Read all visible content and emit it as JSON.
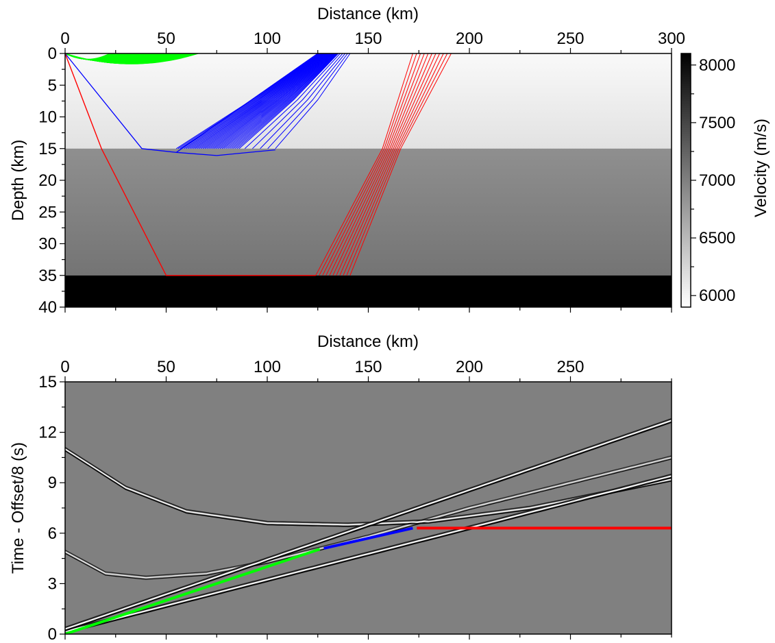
{
  "chart_data": [
    {
      "type": "heatmap",
      "title": "",
      "xlabel": "Distance (km)",
      "ylabel": "Depth (km)",
      "xlim": [
        0,
        300
      ],
      "ylim": [
        40,
        0
      ],
      "x_axis_position": "top",
      "x_ticks": [
        0,
        50,
        100,
        150,
        200,
        250,
        300
      ],
      "y_ticks": [
        0,
        5,
        10,
        15,
        20,
        25,
        30,
        35,
        40
      ],
      "grid": false,
      "layers": [
        {
          "depth_top": 0,
          "depth_bottom": 15,
          "velocity_top": 5950,
          "velocity_bottom": 6150
        },
        {
          "depth_top": 15,
          "depth_bottom": 35,
          "velocity_top": 6870,
          "velocity_bottom": 7100
        },
        {
          "depth_top": 35,
          "depth_bottom": 40,
          "velocity_top": 8100,
          "velocity_bottom": 8100
        }
      ],
      "colorbar": {
        "label": "Velocity (m/s)",
        "range": [
          5900,
          8100
        ],
        "ticks": [
          6000,
          6500,
          7000,
          7500,
          8000
        ],
        "colormap": "white-to-black"
      },
      "ray_families": [
        {
          "name": "direct",
          "color": "#00ff00",
          "rays": [
            [
              [
                0,
                0
              ],
              [
                30,
                1.5
              ],
              [
                65,
                0.5
              ],
              [
                70,
                0
              ]
            ]
          ]
        },
        {
          "name": "head_wave_15km",
          "color": "#0000ff",
          "fan": {
            "interface_x": [
              55,
              104
            ],
            "interface_depth": 15,
            "surface_x": [
              125,
              141
            ],
            "dense_until_x": 87
          },
          "rays": [
            [
              [
                0,
                0
              ],
              [
                38,
                15
              ],
              [
                55,
                15.6
              ],
              [
                125,
                0
              ]
            ],
            [
              [
                55,
                15.6
              ],
              [
                75,
                16.1
              ],
              [
                104,
                15.2
              ]
            ]
          ]
        },
        {
          "name": "head_wave_35km",
          "color": "#ff0000",
          "fan": {
            "interface_x": [
              124,
              141
            ],
            "interface_depth": 35,
            "surface_x": [
              172,
              191
            ],
            "kink_x": [
              157,
              166
            ]
          },
          "rays": [
            [
              [
                0,
                0
              ],
              [
                18,
                15
              ],
              [
                50,
                35
              ],
              [
                124,
                35
              ]
            ]
          ]
        }
      ]
    },
    {
      "type": "heatmap",
      "title": "",
      "xlabel": "Distance (km)",
      "ylabel": "Time - Offset/8 (s)",
      "xlim": [
        0,
        300
      ],
      "ylim": [
        0,
        15
      ],
      "x_axis_position": "top",
      "x_ticks": [
        0,
        50,
        100,
        150,
        200,
        250
      ],
      "y_ticks": [
        0,
        3,
        6,
        9,
        12,
        15
      ],
      "grid": false,
      "background": "#808080",
      "events": [
        {
          "name": "direct",
          "x": [
            0,
            300
          ],
          "y": [
            0.3,
            12.7
          ]
        },
        {
          "name": "refraction_15km",
          "x": [
            0,
            300
          ],
          "y": [
            0.15,
            9.4
          ]
        },
        {
          "name": "reflection_15km",
          "x": [
            0,
            30,
            60,
            100,
            140,
            180,
            230,
            300
          ],
          "y": [
            11.0,
            8.7,
            7.3,
            6.6,
            6.5,
            6.7,
            7.5,
            9.2
          ]
        },
        {
          "name": "reflection_35km",
          "x": [
            0,
            20,
            40,
            70,
            100,
            150,
            200,
            300
          ],
          "y": [
            4.9,
            3.6,
            3.35,
            3.6,
            4.3,
            5.8,
            7.5,
            10.5
          ]
        }
      ],
      "series": [
        {
          "x": [
            0,
            126
          ],
          "y": [
            0.0,
            5.05
          ],
          "color": "#00ff00"
        },
        {
          "x": [
            128,
            172
          ],
          "y": [
            5.1,
            6.3
          ],
          "color": "#0000ff"
        },
        {
          "x": [
            174,
            300
          ],
          "y": [
            6.3,
            6.3
          ],
          "color": "#ff0000"
        }
      ]
    }
  ]
}
